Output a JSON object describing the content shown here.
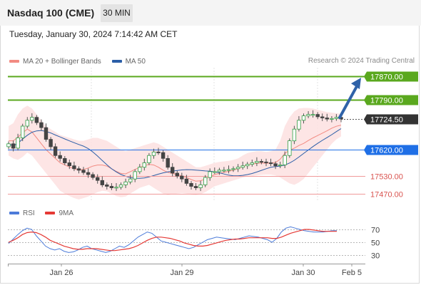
{
  "header": {
    "instrument": "Nasdaq 100 (CME)",
    "timeframe": "30 MIN",
    "datetime": "Tuesday, January 30, 2024 7:14:42 AM CET"
  },
  "legend": {
    "ma20_label": "MA 20 + Bollinger Bands",
    "ma50_label": "MA 50",
    "ma20_color": "#f28b82",
    "ma50_color": "#2b5ea7",
    "copyright": "Research © 2024 Trading Central"
  },
  "rsi_legend": {
    "rsi_label": "RSI",
    "ma9_label": "9MA",
    "rsi_color": "#4c7bd9",
    "ma9_color": "#e53935"
  },
  "colors": {
    "resistance": "#5aa81e",
    "support": "#1f6fe6",
    "minor_level": "#f09a9a",
    "bollinger_fill": "#fde1e1",
    "arrow": "#2f62a8",
    "candle_up": "#2f9e44",
    "candle_down": "#444444",
    "last_price_bg": "#333333"
  },
  "chart_data": {
    "type": "candlestick",
    "x_axis_labels": [
      "Jan 26",
      "Jan 29",
      "Jan 30",
      "Feb 5"
    ],
    "price_levels": [
      {
        "value": 17870.0,
        "label": "17870.00",
        "kind": "resistance"
      },
      {
        "value": 17790.0,
        "label": "17790.00",
        "kind": "resistance"
      },
      {
        "value": 17724.5,
        "label": "17724.50",
        "kind": "last_price"
      },
      {
        "value": 17620.0,
        "label": "17620.00",
        "kind": "pivot"
      },
      {
        "value": 17530.0,
        "label": "17530.00",
        "kind": "support"
      },
      {
        "value": 17470.0,
        "label": "17470.00",
        "kind": "support"
      }
    ],
    "price_close_series": [
      17640,
      17625,
      17660,
      17700,
      17720,
      17730,
      17712,
      17695,
      17655,
      17630,
      17600,
      17590,
      17575,
      17565,
      17555,
      17550,
      17542,
      17535,
      17525,
      17515,
      17500,
      17495,
      17490,
      17492,
      17500,
      17510,
      17520,
      17545,
      17560,
      17575,
      17600,
      17612,
      17610,
      17590,
      17560,
      17540,
      17530,
      17520,
      17505,
      17495,
      17490,
      17500,
      17525,
      17545,
      17545,
      17550,
      17550,
      17552,
      17555,
      17560,
      17565,
      17570,
      17575,
      17580,
      17578,
      17575,
      17572,
      17565,
      17568,
      17600,
      17650,
      17690,
      17720,
      17735,
      17740,
      17740,
      17732,
      17728,
      17724,
      17726,
      17730,
      17724.5
    ],
    "bollinger_upper_series": [
      17700,
      17710,
      17740,
      17760,
      17770,
      17760,
      17740,
      17720,
      17700,
      17690,
      17680,
      17670,
      17665,
      17660,
      17655,
      17650,
      17650,
      17655,
      17660,
      17660,
      17655,
      17650,
      17640,
      17630,
      17620,
      17615,
      17620,
      17625,
      17630,
      17635,
      17640,
      17645,
      17640,
      17630,
      17620,
      17610,
      17600,
      17590,
      17580,
      17570,
      17560,
      17560,
      17565,
      17570,
      17575,
      17578,
      17580,
      17582,
      17585,
      17590,
      17600,
      17608,
      17612,
      17615,
      17615,
      17612,
      17615,
      17620,
      17650,
      17700,
      17730,
      17750,
      17760,
      17762,
      17762,
      17760,
      17756,
      17752,
      17748,
      17746,
      17744,
      17742
    ],
    "bollinger_lower_series": [
      17600,
      17590,
      17585,
      17595,
      17610,
      17600,
      17580,
      17560,
      17540,
      17520,
      17500,
      17480,
      17470,
      17462,
      17455,
      17450,
      17455,
      17460,
      17468,
      17475,
      17480,
      17478,
      17470,
      17462,
      17458,
      17460,
      17470,
      17480,
      17490,
      17495,
      17500,
      17490,
      17480,
      17470,
      17465,
      17468,
      17470,
      17472,
      17470,
      17466,
      17465,
      17468,
      17475,
      17485,
      17495,
      17500,
      17505,
      17510,
      17515,
      17520,
      17525,
      17528,
      17530,
      17532,
      17534,
      17535,
      17535,
      17532,
      17525,
      17515,
      17505,
      17500,
      17508,
      17520,
      17540,
      17560,
      17580,
      17600,
      17620,
      17640,
      17655,
      17665
    ],
    "rsi_axis_ticks": [
      70,
      50,
      30
    ],
    "rsi_series": [
      48,
      55,
      62,
      68,
      72,
      70,
      60,
      52,
      44,
      40,
      38,
      40,
      36,
      34,
      35,
      38,
      42,
      44,
      40,
      38,
      36,
      34,
      36,
      40,
      44,
      42,
      46,
      52,
      58,
      62,
      66,
      64,
      58,
      52,
      50,
      48,
      46,
      44,
      42,
      40,
      42,
      46,
      50,
      54,
      56,
      58,
      57,
      56,
      55,
      54,
      56,
      58,
      60,
      59,
      58,
      56,
      54,
      50,
      56,
      66,
      72,
      74,
      72,
      70,
      68,
      67,
      66,
      66,
      66,
      67,
      68,
      68
    ],
    "rsi_ma9_series": [
      50,
      53,
      57,
      62,
      65,
      66,
      65,
      62,
      58,
      53,
      50,
      47,
      44,
      42,
      40,
      39,
      39,
      40,
      40,
      40,
      39,
      38,
      37,
      37,
      38,
      39,
      40,
      42,
      45,
      49,
      53,
      56,
      58,
      58,
      57,
      56,
      54,
      52,
      49,
      47,
      45,
      44,
      44,
      45,
      47,
      49,
      51,
      53,
      54,
      55,
      55,
      56,
      57,
      57,
      57,
      57,
      57,
      56,
      56,
      58,
      61,
      64,
      66,
      68,
      70,
      70,
      69,
      68,
      67,
      67,
      67,
      67
    ]
  }
}
